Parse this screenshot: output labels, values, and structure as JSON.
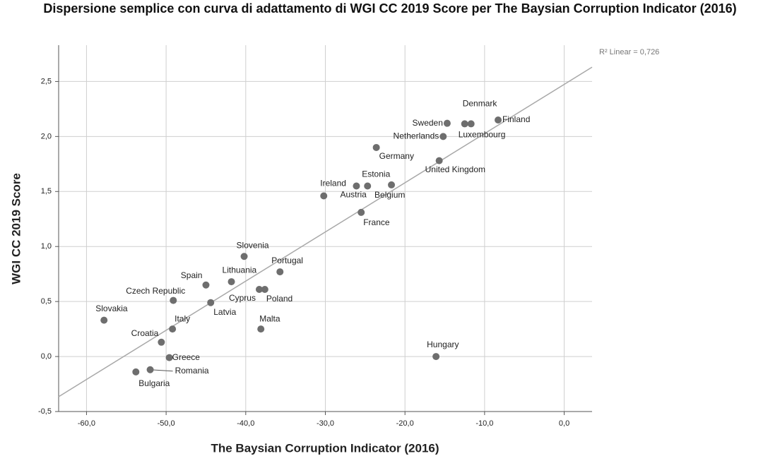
{
  "chart_data": {
    "type": "scatter",
    "title": "Dispersione semplice con curva di adattamento di WGI CC 2019 Score per The Baysian Corruption Indicator (2016)",
    "xlabel": "The Baysian Corruption Indicator (2016)",
    "ylabel": "WGI CC 2019 Score",
    "annotation": "R² Linear = 0,726",
    "labels": [
      "Denmark",
      "Luxembourg",
      "Finland",
      "Sweden",
      "Netherlands",
      "Germany",
      "United Kingdom",
      "Estonia",
      "Ireland",
      "Austria",
      "Belgium",
      "France",
      "Slovenia",
      "Portugal",
      "Lithuania",
      "Spain",
      "Poland",
      "Cyprus",
      "Czech Republic",
      "Latvia",
      "Slovakia",
      "Italy",
      "Malta",
      "Croatia",
      "Greece",
      "Hungary",
      "Romania",
      "Bulgaria"
    ],
    "x": [
      -11.7,
      -12.5,
      -8.3,
      -14.7,
      -15.2,
      -23.6,
      -15.7,
      -24.7,
      -30.2,
      -26.1,
      -21.7,
      -25.5,
      -40.2,
      -35.7,
      -41.8,
      -45.0,
      -37.6,
      -38.3,
      -49.1,
      -44.4,
      -57.8,
      -49.2,
      -38.1,
      -50.6,
      -49.6,
      -16.1,
      -52.0,
      -53.8
    ],
    "y": [
      2.115,
      2.115,
      2.15,
      2.12,
      2.0,
      1.9,
      1.78,
      1.55,
      1.46,
      1.55,
      1.56,
      1.31,
      0.91,
      0.77,
      0.68,
      0.65,
      0.61,
      0.61,
      0.51,
      0.49,
      0.33,
      0.25,
      0.25,
      0.13,
      -0.01,
      0.0,
      -0.12,
      -0.14
    ],
    "color": "#6e6e6e",
    "fit_line": {
      "x": [
        -63.5,
        3.5
      ],
      "y": [
        -0.365,
        2.63
      ],
      "color": "#a8a8a8"
    },
    "xlim": [
      -63.5,
      3.5
    ],
    "ylim": [
      -0.5,
      2.83
    ],
    "xticks": [
      {
        "value": -60,
        "label": "-60,0"
      },
      {
        "value": -50,
        "label": "-50,0"
      },
      {
        "value": -40,
        "label": "-40,0"
      },
      {
        "value": -30,
        "label": "-30,0"
      },
      {
        "value": -20,
        "label": "-20,0"
      },
      {
        "value": -10,
        "label": "-10,0"
      },
      {
        "value": 0,
        "label": "0,0"
      }
    ],
    "yticks": [
      {
        "value": -0.5,
        "label": "-0,5"
      },
      {
        "value": 0,
        "label": "0,0"
      },
      {
        "value": 0.5,
        "label": "0,5"
      },
      {
        "value": 1,
        "label": "1,0"
      },
      {
        "value": 1.5,
        "label": "1,5"
      },
      {
        "value": 2,
        "label": "2,0"
      },
      {
        "value": 2.5,
        "label": "2,5"
      }
    ],
    "grid": true
  }
}
